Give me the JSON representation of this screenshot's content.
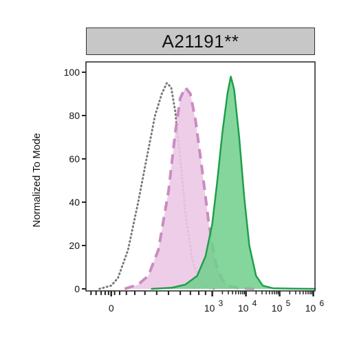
{
  "chart_data": {
    "type": "area",
    "title": "A21191**",
    "xlabel": "",
    "ylabel": "Normalized To Mode",
    "x_scale": "biexponential",
    "xlim_log10": [
      -0.75,
      6.05
    ],
    "ylim": [
      0,
      100
    ],
    "y_ticks": [
      0,
      20,
      40,
      60,
      80,
      100
    ],
    "x_ticks": [
      {
        "base": "0",
        "exp": ""
      },
      {
        "base": "10",
        "exp": "3"
      },
      {
        "base": "10",
        "exp": "4"
      },
      {
        "base": "10",
        "exp": "5"
      },
      {
        "base": "10",
        "exp": "6"
      }
    ],
    "grid": false,
    "series": [
      {
        "style": "dotted",
        "line_color": "#7a7a7a",
        "fill_color": "",
        "points": [
          [
            -0.35,
            0
          ],
          [
            0.0,
            1.5
          ],
          [
            0.2,
            5
          ],
          [
            0.5,
            18
          ],
          [
            0.8,
            40
          ],
          [
            1.05,
            60
          ],
          [
            1.3,
            80
          ],
          [
            1.5,
            90
          ],
          [
            1.65,
            95
          ],
          [
            1.78,
            93
          ],
          [
            1.9,
            82
          ],
          [
            2.05,
            60
          ],
          [
            2.2,
            35
          ],
          [
            2.4,
            14
          ],
          [
            2.6,
            4
          ],
          [
            2.85,
            0.5
          ],
          [
            3.1,
            0
          ]
        ]
      },
      {
        "style": "dashed",
        "line_color": "#c98cc2",
        "fill_color": "#ecc8e6",
        "points": [
          [
            0.4,
            0
          ],
          [
            0.8,
            2
          ],
          [
            1.1,
            6
          ],
          [
            1.4,
            18
          ],
          [
            1.7,
            45
          ],
          [
            1.9,
            72
          ],
          [
            2.05,
            88
          ],
          [
            2.2,
            93
          ],
          [
            2.35,
            90
          ],
          [
            2.5,
            78
          ],
          [
            2.7,
            55
          ],
          [
            2.9,
            30
          ],
          [
            3.1,
            12
          ],
          [
            3.3,
            4
          ],
          [
            3.55,
            1
          ],
          [
            3.8,
            0.3
          ],
          [
            4.3,
            0
          ]
        ]
      },
      {
        "style": "solid",
        "line_color": "#1f9e4a",
        "fill_color": "#6fcf8c",
        "points": [
          [
            1.2,
            0
          ],
          [
            1.8,
            0.5
          ],
          [
            2.2,
            2
          ],
          [
            2.55,
            6
          ],
          [
            2.8,
            15
          ],
          [
            3.0,
            30
          ],
          [
            3.15,
            50
          ],
          [
            3.3,
            72
          ],
          [
            3.45,
            90
          ],
          [
            3.55,
            98
          ],
          [
            3.65,
            92
          ],
          [
            3.8,
            70
          ],
          [
            3.95,
            42
          ],
          [
            4.1,
            20
          ],
          [
            4.3,
            6
          ],
          [
            4.5,
            1.5
          ],
          [
            4.8,
            0.3
          ],
          [
            5.5,
            0.1
          ],
          [
            6.05,
            0
          ]
        ]
      }
    ]
  }
}
